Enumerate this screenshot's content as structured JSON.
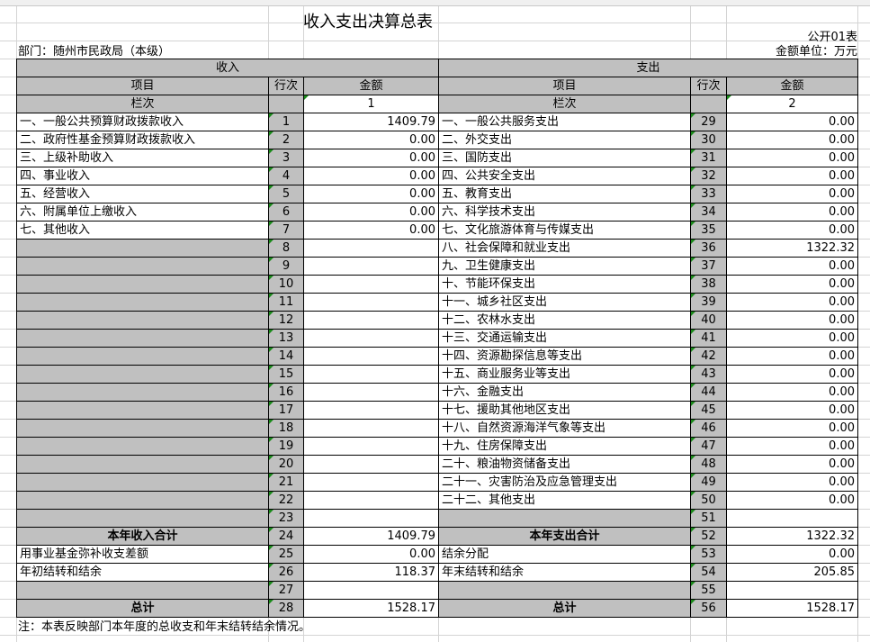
{
  "title": "收入支出决算总表",
  "form_no": "公开01表",
  "department": "部门：随州市民政局（本级）",
  "unit": "金额单位：万元",
  "income_header": "收入",
  "expense_header": "支出",
  "col_item": "项目",
  "col_line": "行次",
  "col_amount": "金额",
  "col_seq": "栏次",
  "seq_income": "1",
  "seq_expense": "2",
  "rows": [
    {
      "li": "一、一般公共预算财政拨款收入",
      "ln": "1",
      "la": "1409.79",
      "ri": "一、一般公共服务支出",
      "rn": "29",
      "ra": "0.00"
    },
    {
      "li": "二、政府性基金预算财政拨款收入",
      "ln": "2",
      "la": "0.00",
      "ri": "二、外交支出",
      "rn": "30",
      "ra": "0.00"
    },
    {
      "li": "三、上级补助收入",
      "ln": "3",
      "la": "0.00",
      "ri": "三、国防支出",
      "rn": "31",
      "ra": "0.00"
    },
    {
      "li": "四、事业收入",
      "ln": "4",
      "la": "0.00",
      "ri": "四、公共安全支出",
      "rn": "32",
      "ra": "0.00"
    },
    {
      "li": "五、经营收入",
      "ln": "5",
      "la": "0.00",
      "ri": "五、教育支出",
      "rn": "33",
      "ra": "0.00"
    },
    {
      "li": "六、附属单位上缴收入",
      "ln": "6",
      "la": "0.00",
      "ri": "六、科学技术支出",
      "rn": "34",
      "ra": "0.00"
    },
    {
      "li": "七、其他收入",
      "ln": "7",
      "la": "0.00",
      "ri": "七、文化旅游体育与传媒支出",
      "rn": "35",
      "ra": "0.00"
    },
    {
      "li": "",
      "ln": "8",
      "la": "",
      "ri": "八、社会保障和就业支出",
      "rn": "36",
      "ra": "1322.32"
    },
    {
      "li": "",
      "ln": "9",
      "la": "",
      "ri": "九、卫生健康支出",
      "rn": "37",
      "ra": "0.00"
    },
    {
      "li": "",
      "ln": "10",
      "la": "",
      "ri": "十、节能环保支出",
      "rn": "38",
      "ra": "0.00"
    },
    {
      "li": "",
      "ln": "11",
      "la": "",
      "ri": "十一、城乡社区支出",
      "rn": "39",
      "ra": "0.00"
    },
    {
      "li": "",
      "ln": "12",
      "la": "",
      "ri": "十二、农林水支出",
      "rn": "40",
      "ra": "0.00"
    },
    {
      "li": "",
      "ln": "13",
      "la": "",
      "ri": "十三、交通运输支出",
      "rn": "41",
      "ra": "0.00"
    },
    {
      "li": "",
      "ln": "14",
      "la": "",
      "ri": "十四、资源勘探信息等支出",
      "rn": "42",
      "ra": "0.00"
    },
    {
      "li": "",
      "ln": "15",
      "la": "",
      "ri": "十五、商业服务业等支出",
      "rn": "43",
      "ra": "0.00"
    },
    {
      "li": "",
      "ln": "16",
      "la": "",
      "ri": "十六、金融支出",
      "rn": "44",
      "ra": "0.00"
    },
    {
      "li": "",
      "ln": "17",
      "la": "",
      "ri": "十七、援助其他地区支出",
      "rn": "45",
      "ra": "0.00"
    },
    {
      "li": "",
      "ln": "18",
      "la": "",
      "ri": "十八、自然资源海洋气象等支出",
      "rn": "46",
      "ra": "0.00"
    },
    {
      "li": "",
      "ln": "19",
      "la": "",
      "ri": "十九、住房保障支出",
      "rn": "47",
      "ra": "0.00"
    },
    {
      "li": "",
      "ln": "20",
      "la": "",
      "ri": "二十、粮油物资储备支出",
      "rn": "48",
      "ra": "0.00"
    },
    {
      "li": "",
      "ln": "21",
      "la": "",
      "ri": "二十一、灾害防治及应急管理支出",
      "rn": "49",
      "ra": "0.00"
    },
    {
      "li": "",
      "ln": "22",
      "la": "",
      "ri": "二十二、其他支出",
      "rn": "50",
      "ra": "0.00"
    },
    {
      "li": "",
      "ln": "23",
      "la": "",
      "ri": "",
      "rn": "51",
      "ra": ""
    },
    {
      "li": "本年收入合计",
      "ln": "24",
      "la": "1409.79",
      "ri": "本年支出合计",
      "rn": "52",
      "ra": "1322.32",
      "total": true
    },
    {
      "li": "用事业基金弥补收支差额",
      "ln": "25",
      "la": "0.00",
      "ri": "结余分配",
      "rn": "53",
      "ra": "0.00"
    },
    {
      "li": "年初结转和结余",
      "ln": "26",
      "la": "118.37",
      "ri": "年末结转和结余",
      "rn": "54",
      "ra": "205.85"
    },
    {
      "li": "",
      "ln": "27",
      "la": "",
      "ri": "",
      "rn": "55",
      "ra": ""
    },
    {
      "li": "总计",
      "ln": "28",
      "la": "1528.17",
      "ri": "总计",
      "rn": "56",
      "ra": "1528.17",
      "total": true
    }
  ],
  "note": "注：本表反映部门本年度的总收支和年末结转结余情况。"
}
